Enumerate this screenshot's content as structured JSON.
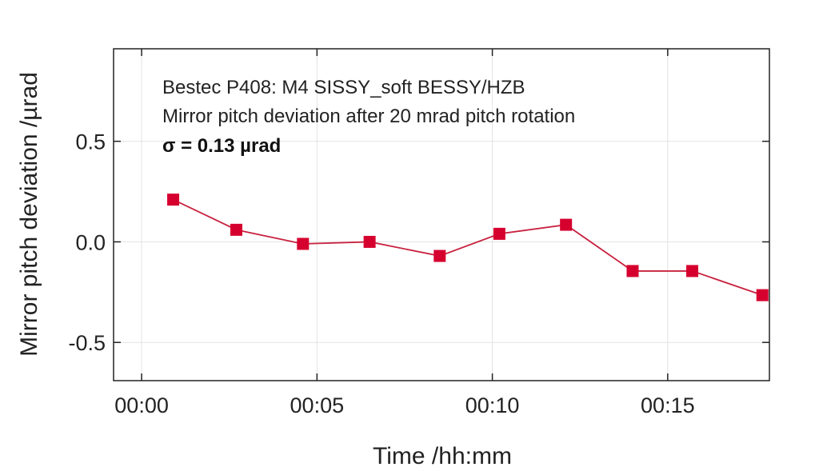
{
  "chart_data": {
    "type": "line",
    "xlabel": "Time /hh:mm",
    "ylabel": "Mirror pitch deviation /µrad",
    "annotations": [
      "Bestec P408: M4 SISSY_soft BESSY/HZB",
      "Mirror pitch deviation after 20 mrad pitch rotation",
      "σ = 0.13 µrad"
    ],
    "x_ticks": [
      "00:00",
      "00:05",
      "00:10",
      "00:15"
    ],
    "x_tick_minutes": [
      0,
      5,
      10,
      15
    ],
    "y_ticks": [
      "0.5",
      "0.0",
      "-0.5"
    ],
    "y_tick_values": [
      0.5,
      0.0,
      -0.5
    ],
    "xlim_minutes": [
      -0.8,
      17.9
    ],
    "ylim": [
      -0.69,
      0.96
    ],
    "grid": true,
    "series": [
      {
        "x_minutes": [
          0.9,
          2.7,
          4.6,
          6.5,
          8.5,
          10.2,
          12.1,
          14.0,
          15.7,
          17.7
        ],
        "y": [
          0.21,
          0.06,
          -0.01,
          0.0,
          -0.07,
          0.04,
          0.085,
          -0.145,
          -0.145,
          -0.265
        ]
      }
    ],
    "colors": {
      "series": "#d6002f",
      "line": "#c8223f",
      "grid": "#e3e3e3",
      "frame": "#222222"
    }
  }
}
